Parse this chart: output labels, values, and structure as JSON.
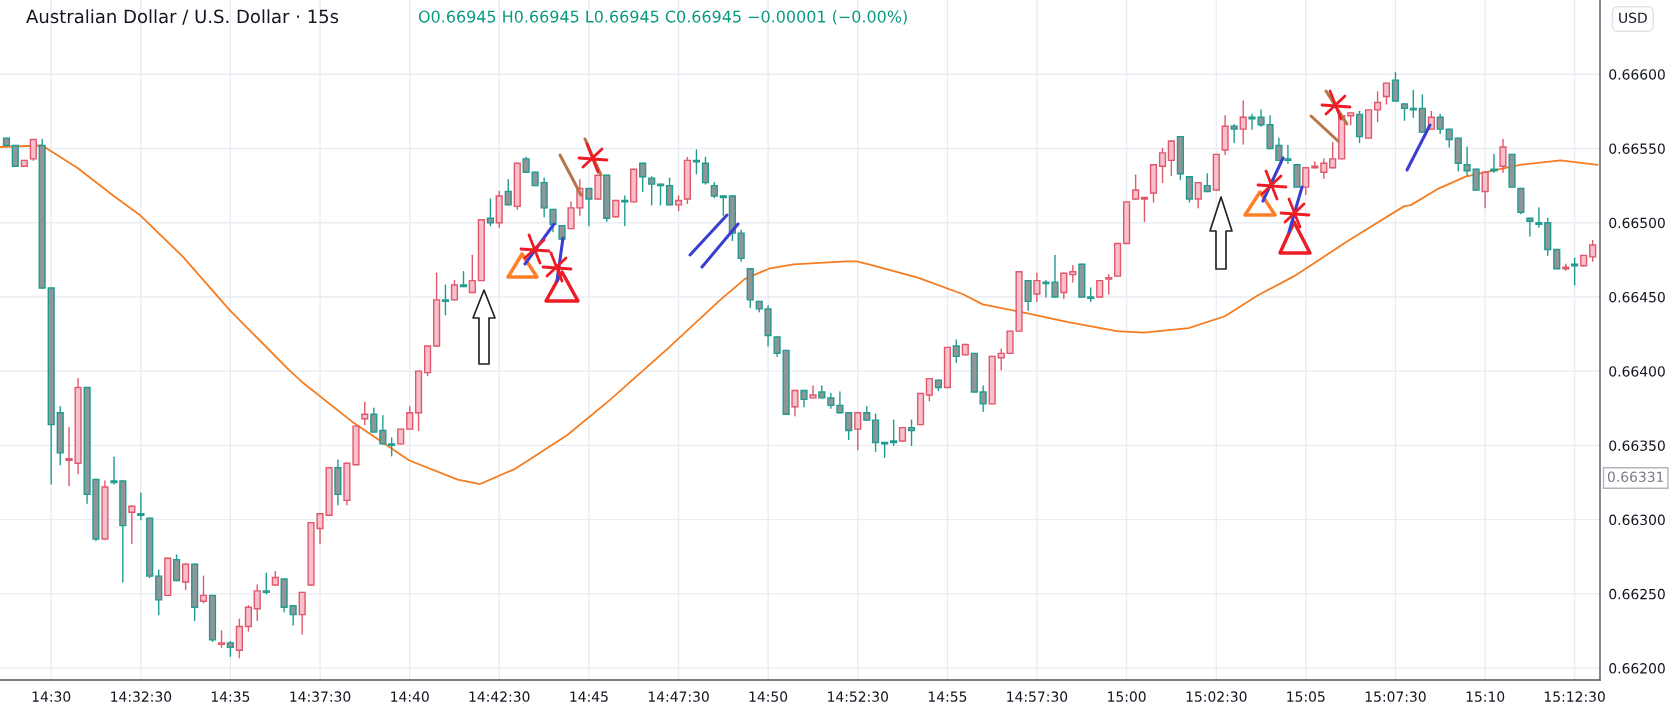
{
  "chart_data": {
    "type": "candlestick",
    "title": "Australian Dollar / U.S. Dollar · 15s",
    "subtitle": "O0.66945 H0.66945 L0.66945 C0.66945 −0.00001 (−0.00%)",
    "x": [
      14.4792,
      14.4833,
      14.4875,
      14.4917,
      14.4958,
      14.5,
      14.5042,
      14.5083,
      14.5125,
      14.5167,
      14.5208,
      14.525,
      14.5292,
      14.5333,
      14.5375,
      14.5417,
      14.5458,
      14.55,
      14.5542,
      14.5583,
      14.5625,
      14.5667,
      14.5708,
      14.575,
      14.5792,
      14.5833,
      14.5875,
      14.5917,
      14.5958,
      14.6,
      14.6042,
      14.6083,
      14.6125,
      14.6167,
      14.6208,
      14.625,
      14.6292,
      14.6333,
      14.6375,
      14.6417,
      14.6458,
      14.65,
      14.6542,
      14.6583,
      14.6625,
      14.6667,
      14.6708,
      14.675,
      14.6792,
      14.6833,
      14.6875,
      14.6917,
      14.6958,
      14.7,
      14.7042,
      14.7083,
      14.7125,
      14.7167,
      14.7208,
      14.725,
      14.7292,
      14.7333,
      14.7375,
      14.7417,
      14.7458,
      14.75,
      14.7542,
      14.7583,
      14.7625,
      14.7667,
      14.7708,
      14.775,
      14.7792,
      14.7833,
      14.7875,
      14.7917,
      14.7958,
      14.8,
      14.8042,
      14.8083,
      14.8125,
      14.8167,
      14.8208,
      14.825,
      14.8292,
      14.8333,
      14.8375,
      14.8417,
      14.8458,
      14.85,
      14.8542,
      14.8583,
      14.8625,
      14.8667,
      14.8708,
      14.875,
      14.8792,
      14.8833,
      14.8875,
      14.8917,
      14.8958,
      14.9,
      14.9042,
      14.9083,
      14.9125,
      14.9167,
      14.9208,
      14.925,
      14.9292,
      14.9333,
      14.9375,
      14.9417,
      14.9458,
      14.95,
      14.9542,
      14.9583,
      14.9625,
      14.9667,
      14.9708,
      14.975,
      14.9792,
      14.9833,
      14.9875,
      14.9917,
      14.9958,
      15.0,
      15.0042,
      15.0083,
      15.0125,
      15.0167,
      15.0208,
      15.025,
      15.0292,
      15.0333,
      15.0375,
      15.0417,
      15.0458,
      15.05,
      15.0542,
      15.0583,
      15.0625,
      15.0667,
      15.0708,
      15.075,
      15.0792,
      15.0833,
      15.0875,
      15.0917,
      15.0958,
      15.1,
      15.1042,
      15.1083,
      15.1125,
      15.1167,
      15.1208,
      15.125,
      15.1292,
      15.1333,
      15.1375,
      15.1417,
      15.1458,
      15.15,
      15.1542,
      15.1583,
      15.1625,
      15.1667,
      15.1708,
      15.175,
      15.1792,
      15.1833,
      15.1875,
      15.1917,
      15.1958,
      15.2,
      15.2042,
      15.2083,
      15.2125,
      15.2167
    ],
    "ohlc": [
      [
        0.66557,
        0.66557,
        0.66552,
        0.66552
      ],
      [
        0.66552,
        0.66552,
        0.66538,
        0.66538
      ],
      [
        0.66538,
        0.66542,
        0.66538,
        0.66542
      ],
      [
        0.66543,
        0.66556,
        0.66542,
        0.66556
      ],
      [
        0.66552,
        0.66556,
        0.66456,
        0.66456
      ],
      [
        0.66456,
        0.66456,
        0.66324,
        0.66364
      ],
      [
        0.66372,
        0.66376,
        0.66337,
        0.66345
      ],
      [
        0.6634,
        0.66362,
        0.66323,
        0.66341
      ],
      [
        0.66338,
        0.66395,
        0.66331,
        0.66389
      ],
      [
        0.66389,
        0.66389,
        0.66311,
        0.66317
      ],
      [
        0.66327,
        0.66327,
        0.66286,
        0.66287
      ],
      [
        0.66287,
        0.66326,
        0.66287,
        0.66322
      ],
      [
        0.66326,
        0.66342,
        0.66324,
        0.66325
      ],
      [
        0.66326,
        0.66326,
        0.66258,
        0.66296
      ],
      [
        0.66305,
        0.66309,
        0.66284,
        0.66309
      ],
      [
        0.66304,
        0.66318,
        0.663,
        0.66303
      ],
      [
        0.66301,
        0.66301,
        0.66261,
        0.66262
      ],
      [
        0.66262,
        0.66266,
        0.66236,
        0.66246
      ],
      [
        0.66249,
        0.66274,
        0.66249,
        0.66274
      ],
      [
        0.66273,
        0.66276,
        0.66259,
        0.66259
      ],
      [
        0.66258,
        0.6627,
        0.66253,
        0.6627
      ],
      [
        0.6627,
        0.6627,
        0.66232,
        0.66241
      ],
      [
        0.66245,
        0.66262,
        0.66244,
        0.66249
      ],
      [
        0.66249,
        0.66249,
        0.66218,
        0.66219
      ],
      [
        0.66216,
        0.66225,
        0.66214,
        0.66217
      ],
      [
        0.66217,
        0.66218,
        0.66208,
        0.66214
      ],
      [
        0.66212,
        0.66233,
        0.66207,
        0.66228
      ],
      [
        0.66228,
        0.66242,
        0.66225,
        0.66241
      ],
      [
        0.6624,
        0.66256,
        0.66232,
        0.66252
      ],
      [
        0.66252,
        0.66264,
        0.6625,
        0.66251
      ],
      [
        0.66256,
        0.66265,
        0.66256,
        0.66261
      ],
      [
        0.6626,
        0.6626,
        0.66238,
        0.66241
      ],
      [
        0.66242,
        0.66242,
        0.66229,
        0.66236
      ],
      [
        0.66236,
        0.66251,
        0.66223,
        0.66251
      ],
      [
        0.66256,
        0.66298,
        0.66256,
        0.66298
      ],
      [
        0.66294,
        0.66304,
        0.66284,
        0.66304
      ],
      [
        0.66303,
        0.66335,
        0.66303,
        0.66335
      ],
      [
        0.66335,
        0.6634,
        0.6631,
        0.66317
      ],
      [
        0.66313,
        0.66338,
        0.6631,
        0.66338
      ],
      [
        0.66337,
        0.66363,
        0.66337,
        0.66363
      ],
      [
        0.66368,
        0.66379,
        0.66364,
        0.66371
      ],
      [
        0.66371,
        0.66375,
        0.66359,
        0.66359
      ],
      [
        0.6636,
        0.6637,
        0.66351,
        0.66351
      ],
      [
        0.66351,
        0.66355,
        0.66343,
        0.6635
      ],
      [
        0.66351,
        0.66361,
        0.66351,
        0.66361
      ],
      [
        0.66361,
        0.66376,
        0.66361,
        0.66372
      ],
      [
        0.66372,
        0.664,
        0.6636,
        0.664
      ],
      [
        0.66399,
        0.66417,
        0.66397,
        0.66417
      ],
      [
        0.66417,
        0.66466,
        0.66417,
        0.66448
      ],
      [
        0.66448,
        0.66458,
        0.66438,
        0.66447
      ],
      [
        0.66448,
        0.66461,
        0.66448,
        0.66458
      ],
      [
        0.66458,
        0.66467,
        0.66457,
        0.66457
      ],
      [
        0.66453,
        0.66478,
        0.66453,
        0.66461
      ],
      [
        0.66461,
        0.66502,
        0.66461,
        0.66502
      ],
      [
        0.66503,
        0.66516,
        0.66498,
        0.665
      ],
      [
        0.665,
        0.66521,
        0.66497,
        0.66518
      ],
      [
        0.66521,
        0.66529,
        0.66512,
        0.66512
      ],
      [
        0.66511,
        0.6654,
        0.66509,
        0.6654
      ],
      [
        0.66543,
        0.66544,
        0.66534,
        0.66534
      ],
      [
        0.66534,
        0.66534,
        0.66525,
        0.66525
      ],
      [
        0.66527,
        0.6653,
        0.66504,
        0.6651
      ],
      [
        0.66509,
        0.66509,
        0.66494,
        0.66499
      ],
      [
        0.66498,
        0.66498,
        0.66488,
        0.66489
      ],
      [
        0.66496,
        0.66514,
        0.66496,
        0.6651
      ],
      [
        0.6651,
        0.66529,
        0.66505,
        0.66523
      ],
      [
        0.66523,
        0.66523,
        0.66498,
        0.66516
      ],
      [
        0.66516,
        0.66532,
        0.66516,
        0.66532
      ],
      [
        0.66532,
        0.66532,
        0.66501,
        0.66503
      ],
      [
        0.66504,
        0.66515,
        0.66504,
        0.66515
      ],
      [
        0.66515,
        0.66518,
        0.66498,
        0.66514
      ],
      [
        0.66514,
        0.66536,
        0.66514,
        0.66536
      ],
      [
        0.6654,
        0.6654,
        0.66521,
        0.66531
      ],
      [
        0.6653,
        0.66531,
        0.66512,
        0.66526
      ],
      [
        0.66526,
        0.66526,
        0.66512,
        0.66525
      ],
      [
        0.66525,
        0.6653,
        0.66512,
        0.66512
      ],
      [
        0.66512,
        0.66518,
        0.66508,
        0.66515
      ],
      [
        0.66516,
        0.66544,
        0.66513,
        0.66542
      ],
      [
        0.66542,
        0.66549,
        0.66533,
        0.66541
      ],
      [
        0.6654,
        0.66544,
        0.66526,
        0.66527
      ],
      [
        0.66525,
        0.66527,
        0.66517,
        0.66518
      ],
      [
        0.66518,
        0.66518,
        0.66505,
        0.66517
      ],
      [
        0.66518,
        0.66518,
        0.66488,
        0.66493
      ],
      [
        0.66493,
        0.66495,
        0.66474,
        0.66476
      ],
      [
        0.66469,
        0.66469,
        0.66443,
        0.66448
      ],
      [
        0.66447,
        0.66447,
        0.6644,
        0.66442
      ],
      [
        0.66442,
        0.66444,
        0.66417,
        0.66424
      ],
      [
        0.66423,
        0.66423,
        0.6641,
        0.66412
      ],
      [
        0.66414,
        0.66414,
        0.66371,
        0.66371
      ],
      [
        0.66376,
        0.66387,
        0.6637,
        0.66387
      ],
      [
        0.66387,
        0.66387,
        0.66376,
        0.66381
      ],
      [
        0.66382,
        0.6639,
        0.66382,
        0.66384
      ],
      [
        0.66386,
        0.6639,
        0.66382,
        0.66382
      ],
      [
        0.66382,
        0.66385,
        0.66375,
        0.66377
      ],
      [
        0.66377,
        0.66386,
        0.66372,
        0.66372
      ],
      [
        0.66372,
        0.66372,
        0.66354,
        0.6636
      ],
      [
        0.66361,
        0.66372,
        0.66347,
        0.66372
      ],
      [
        0.66372,
        0.66376,
        0.66367,
        0.66367
      ],
      [
        0.66367,
        0.66371,
        0.66346,
        0.66352
      ],
      [
        0.66352,
        0.66352,
        0.66342,
        0.66351
      ],
      [
        0.66353,
        0.66367,
        0.6635,
        0.66352
      ],
      [
        0.66353,
        0.66362,
        0.66353,
        0.66362
      ],
      [
        0.66362,
        0.66367,
        0.6635,
        0.6636
      ],
      [
        0.66364,
        0.66385,
        0.66364,
        0.66385
      ],
      [
        0.66384,
        0.66395,
        0.6638,
        0.66395
      ],
      [
        0.66394,
        0.66394,
        0.66387,
        0.66389
      ],
      [
        0.66389,
        0.66416,
        0.66389,
        0.66416
      ],
      [
        0.66417,
        0.66421,
        0.66406,
        0.6641
      ],
      [
        0.66411,
        0.66418,
        0.66411,
        0.66418
      ],
      [
        0.66412,
        0.66412,
        0.66386,
        0.66386
      ],
      [
        0.66386,
        0.6639,
        0.66373,
        0.66378
      ],
      [
        0.66378,
        0.6641,
        0.66378,
        0.6641
      ],
      [
        0.66409,
        0.66415,
        0.66401,
        0.66412
      ],
      [
        0.66412,
        0.66427,
        0.66412,
        0.66427
      ],
      [
        0.66427,
        0.66467,
        0.66427,
        0.66467
      ],
      [
        0.66461,
        0.66461,
        0.66441,
        0.66447
      ],
      [
        0.66452,
        0.66466,
        0.66447,
        0.66461
      ],
      [
        0.6646,
        0.66461,
        0.6645,
        0.66459
      ],
      [
        0.6646,
        0.66478,
        0.6645,
        0.6645
      ],
      [
        0.66453,
        0.66466,
        0.66449,
        0.66466
      ],
      [
        0.66465,
        0.66471,
        0.6646,
        0.66467
      ],
      [
        0.66472,
        0.66472,
        0.6645,
        0.6645
      ],
      [
        0.6645,
        0.66456,
        0.66447,
        0.66449
      ],
      [
        0.6645,
        0.66461,
        0.6645,
        0.66461
      ],
      [
        0.66462,
        0.66465,
        0.66452,
        0.66463
      ],
      [
        0.66464,
        0.66486,
        0.66464,
        0.66486
      ],
      [
        0.66486,
        0.66514,
        0.66486,
        0.66514
      ],
      [
        0.66516,
        0.66532,
        0.66516,
        0.66522
      ],
      [
        0.66516,
        0.66517,
        0.66501,
        0.66517
      ],
      [
        0.6652,
        0.66539,
        0.66514,
        0.66539
      ],
      [
        0.66538,
        0.6655,
        0.66527,
        0.66547
      ],
      [
        0.66542,
        0.66555,
        0.66532,
        0.66555
      ],
      [
        0.66558,
        0.66558,
        0.66529,
        0.66533
      ],
      [
        0.66531,
        0.66531,
        0.66514,
        0.66516
      ],
      [
        0.66516,
        0.66527,
        0.6651,
        0.66527
      ],
      [
        0.66525,
        0.66533,
        0.66521,
        0.66521
      ],
      [
        0.66522,
        0.66546,
        0.66522,
        0.66546
      ],
      [
        0.66549,
        0.66572,
        0.66546,
        0.66565
      ],
      [
        0.66565,
        0.66566,
        0.66554,
        0.66563
      ],
      [
        0.66563,
        0.66582,
        0.66553,
        0.66571
      ],
      [
        0.66571,
        0.66573,
        0.66563,
        0.6657
      ],
      [
        0.66571,
        0.66576,
        0.66565,
        0.66566
      ],
      [
        0.66566,
        0.66572,
        0.6655,
        0.6655
      ],
      [
        0.66552,
        0.66557,
        0.66542,
        0.66542
      ],
      [
        0.66543,
        0.66552,
        0.6654,
        0.66542
      ],
      [
        0.66539,
        0.66539,
        0.66524,
        0.66524
      ],
      [
        0.66524,
        0.66537,
        0.66519,
        0.66537
      ],
      [
        0.66537,
        0.66541,
        0.66537,
        0.66538
      ],
      [
        0.66534,
        0.66543,
        0.6653,
        0.6654
      ],
      [
        0.66537,
        0.66554,
        0.66537,
        0.66543
      ],
      [
        0.66543,
        0.66572,
        0.66543,
        0.66572
      ],
      [
        0.66572,
        0.66574,
        0.66566,
        0.66574
      ],
      [
        0.66573,
        0.66575,
        0.66554,
        0.66558
      ],
      [
        0.66557,
        0.66576,
        0.66557,
        0.66576
      ],
      [
        0.66576,
        0.66588,
        0.66568,
        0.66581
      ],
      [
        0.66585,
        0.66594,
        0.6658,
        0.66594
      ],
      [
        0.66596,
        0.66601,
        0.66582,
        0.66582
      ],
      [
        0.6658,
        0.6658,
        0.66569,
        0.66577
      ],
      [
        0.66577,
        0.66589,
        0.66571,
        0.66576
      ],
      [
        0.66577,
        0.66586,
        0.66561,
        0.66561
      ],
      [
        0.66563,
        0.66575,
        0.66563,
        0.66571
      ],
      [
        0.66571,
        0.66573,
        0.6656,
        0.66563
      ],
      [
        0.66563,
        0.66563,
        0.66551,
        0.66556
      ],
      [
        0.66557,
        0.66557,
        0.66535,
        0.6654
      ],
      [
        0.66539,
        0.66551,
        0.66532,
        0.66535
      ],
      [
        0.66536,
        0.66536,
        0.66522,
        0.66522
      ],
      [
        0.66521,
        0.66534,
        0.6651,
        0.66534
      ],
      [
        0.66536,
        0.66546,
        0.66534,
        0.66535
      ],
      [
        0.66538,
        0.66556,
        0.66534,
        0.66551
      ],
      [
        0.66546,
        0.66546,
        0.66524,
        0.66524
      ],
      [
        0.66523,
        0.66523,
        0.66506,
        0.66507
      ],
      [
        0.66503,
        0.66503,
        0.66491,
        0.66501
      ],
      [
        0.665,
        0.6651,
        0.66497,
        0.66499
      ],
      [
        0.665,
        0.66503,
        0.66478,
        0.66482
      ],
      [
        0.66482,
        0.66482,
        0.66469,
        0.66469
      ],
      [
        0.66469,
        0.66472,
        0.66468,
        0.6647
      ],
      [
        0.66472,
        0.66476,
        0.66458,
        0.66471
      ],
      [
        0.66471,
        0.66478,
        0.66471,
        0.66478
      ],
      [
        0.66477,
        0.66488,
        0.66474,
        0.66485
      ]
    ],
    "series": [
      {
        "type": "line",
        "color": "#f57c20",
        "x": [
          14.4762,
          14.4958,
          14.5121,
          14.5291,
          14.5414,
          14.5613,
          14.5831,
          14.6104,
          14.6172,
          14.6399,
          14.6663,
          14.689,
          14.6994,
          14.7154,
          14.74,
          14.7601,
          14.7865,
          14.8111,
          14.8224,
          14.8337,
          14.8451,
          14.8696,
          14.8745,
          14.8802,
          14.9029,
          14.9237,
          14.9331,
          14.9539,
          14.9728,
          14.9955,
          15.008,
          15.0288,
          15.0457,
          15.0609,
          15.0779,
          15.1043,
          15.1289,
          15.1324,
          15.145,
          15.1576,
          15.1702,
          15.1829,
          15.2018,
          15.219
        ],
        "values": [
          0.66551,
          0.66552,
          0.66537,
          0.66518,
          0.66505,
          0.66477,
          0.66441,
          0.66401,
          0.66392,
          0.66366,
          0.6634,
          0.66327,
          0.66324,
          0.66334,
          0.66357,
          0.66381,
          0.66415,
          0.66448,
          0.66462,
          0.66469,
          0.66472,
          0.66474,
          0.66474,
          0.66472,
          0.66463,
          0.66452,
          0.66445,
          0.66439,
          0.66433,
          0.66427,
          0.66426,
          0.66429,
          0.66437,
          0.66451,
          0.66464,
          0.66489,
          0.66511,
          0.66512,
          0.66523,
          0.66531,
          0.66535,
          0.66539,
          0.66542,
          0.66539
        ]
      }
    ],
    "xlim": [
      14.4762,
      15.2201
    ],
    "ylim": [
      0.66192,
      0.6665
    ],
    "xticks": [
      {
        "value": 14.5,
        "label": "14:30"
      },
      {
        "value": 14.5417,
        "label": "14:32:30"
      },
      {
        "value": 14.5833,
        "label": "14:35"
      },
      {
        "value": 14.625,
        "label": "14:37:30"
      },
      {
        "value": 14.6667,
        "label": "14:40"
      },
      {
        "value": 14.7083,
        "label": "14:42:30"
      },
      {
        "value": 14.75,
        "label": "14:45"
      },
      {
        "value": 14.7917,
        "label": "14:47:30"
      },
      {
        "value": 14.8333,
        "label": "14:50"
      },
      {
        "value": 14.875,
        "label": "14:52:30"
      },
      {
        "value": 14.9167,
        "label": "14:55"
      },
      {
        "value": 14.9583,
        "label": "14:57:30"
      },
      {
        "value": 15.0,
        "label": "15:00"
      },
      {
        "value": 15.0417,
        "label": "15:02:30"
      },
      {
        "value": 15.0833,
        "label": "15:05"
      },
      {
        "value": 15.125,
        "label": "15:07:30"
      },
      {
        "value": 15.1667,
        "label": "15:10"
      },
      {
        "value": 15.2083,
        "label": "15:12:30"
      }
    ],
    "yticks": [
      {
        "value": 0.662,
        "label": "0.66200"
      },
      {
        "value": 0.6625,
        "label": "0.66250"
      },
      {
        "value": 0.663,
        "label": "0.66300"
      },
      {
        "value": 0.6635,
        "label": "0.66350"
      },
      {
        "value": 0.664,
        "label": "0.66400"
      },
      {
        "value": 0.6645,
        "label": "0.66450"
      },
      {
        "value": 0.665,
        "label": "0.66500"
      },
      {
        "value": 0.6655,
        "label": "0.66550"
      },
      {
        "value": 0.666,
        "label": "0.66600"
      }
    ],
    "grid": true,
    "annotations": [
      "USD",
      "0.66331"
    ]
  }
}
